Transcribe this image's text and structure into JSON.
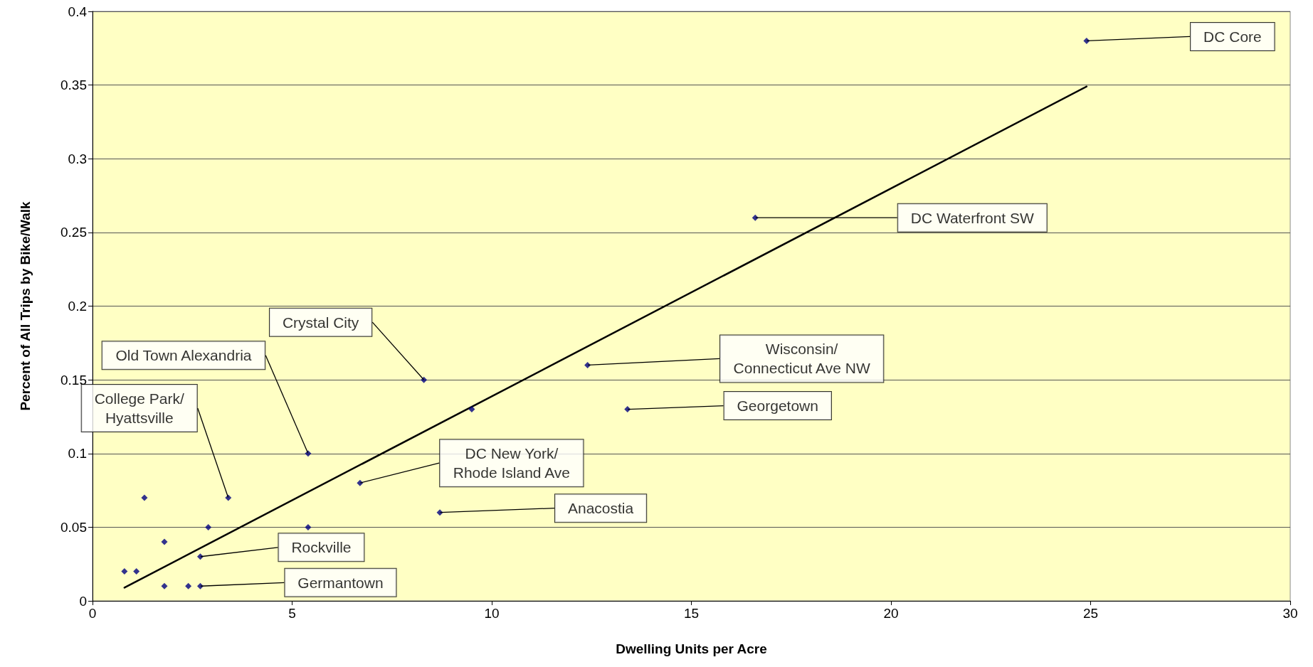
{
  "chart_data": {
    "type": "scatter",
    "xlabel": "Dwelling Units per Acre",
    "ylabel": "Percent of All Trips by Bike/Walk",
    "xlim": [
      0,
      30
    ],
    "xticks": [
      0,
      5,
      10,
      15,
      20,
      25,
      30
    ],
    "ylim": [
      0,
      0.4
    ],
    "yticks": [
      0,
      0.05,
      0.1,
      0.15,
      0.2,
      0.25,
      0.3,
      0.35,
      0.4
    ],
    "grid": "y",
    "series": [
      {
        "marker": "diamond",
        "color": "#000080",
        "x": [
          0.8,
          1.1,
          1.3,
          1.8,
          1.8,
          2.4,
          2.7,
          2.7,
          2.9,
          3.4,
          5.4,
          5.4,
          6.7,
          8.3,
          8.7,
          9.5,
          12.4,
          13.4,
          16.6,
          24.9
        ],
        "values": [
          0.02,
          0.02,
          0.07,
          0.04,
          0.01,
          0.01,
          0.01,
          0.03,
          0.05,
          0.07,
          0.1,
          0.05,
          0.08,
          0.15,
          0.06,
          0.13,
          0.16,
          0.13,
          0.26,
          0.38
        ]
      },
      {
        "type": "line",
        "marker": "none",
        "color": "#000000",
        "line_style": "solid",
        "x": [
          0.8,
          24.9
        ],
        "values": [
          0.009,
          0.349
        ]
      }
    ],
    "annotations": [
      {
        "text": "DC Core",
        "x": 24.9,
        "y": 0.38
      },
      {
        "text": "DC Waterfront SW",
        "x": 16.6,
        "y": 0.26
      },
      {
        "text": "Crystal City",
        "x": 8.3,
        "y": 0.15
      },
      {
        "text": "Old Town Alexandria",
        "x": 5.4,
        "y": 0.1
      },
      {
        "text": "College Park/Hyattsville",
        "x": 3.4,
        "y": 0.07
      },
      {
        "text": "Wisconsin/Connecticut Ave NW",
        "x": 12.4,
        "y": 0.16
      },
      {
        "text": "Georgetown",
        "x": 13.4,
        "y": 0.13
      },
      {
        "text": "DC New York/Rhode Island Ave",
        "x": 6.7,
        "y": 0.08
      },
      {
        "text": "Anacostia",
        "x": 8.7,
        "y": 0.06
      },
      {
        "text": "Rockville",
        "x": 2.7,
        "y": 0.03
      },
      {
        "text": "Germantown",
        "x": 2.7,
        "y": 0.01
      }
    ]
  }
}
